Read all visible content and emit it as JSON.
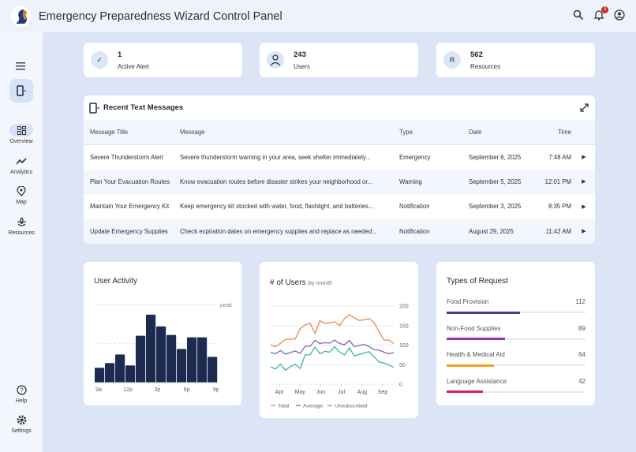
{
  "header": {
    "title": "Emergency Preparedness Wizard Control Panel",
    "notification_count": "3",
    "icons": [
      "search-icon",
      "bell-icon",
      "account-icon"
    ]
  },
  "sidebar": {
    "items": [
      {
        "label": "Overview",
        "icon": "grid-icon",
        "active": true
      },
      {
        "label": "Analytics",
        "icon": "trend-icon"
      },
      {
        "label": "Map",
        "icon": "map-pin-icon"
      },
      {
        "label": "Resources",
        "icon": "plant-icon"
      }
    ],
    "bottom": [
      {
        "label": "Help",
        "icon": "help-icon"
      },
      {
        "label": "Settings",
        "icon": "gear-icon"
      }
    ]
  },
  "stats": [
    {
      "value": "1",
      "label": "Active Alert",
      "icon": "check-icon"
    },
    {
      "value": "243",
      "label": "Users",
      "icon": "user-icon"
    },
    {
      "value": "562",
      "label": "Resources",
      "icon_letter": "R"
    }
  ],
  "messages": {
    "title": "Recent Text Messages",
    "columns": [
      "Message Title",
      "Message",
      "Type",
      "Date",
      "Time"
    ],
    "rows": [
      [
        "Severe Thunderstorm Alert",
        "Severe thunderstorm warning in your area, seek shelter immediately...",
        "Emergency",
        "September 6, 2025",
        "7:48 AM"
      ],
      [
        "Plan Your Evacuation Routes",
        "Know evacuation routes before disaster strikes your neighborhood or...",
        "Warning",
        "September 5, 2025",
        "12:01 PM"
      ],
      [
        "Maintain Your Emergency Kit",
        "Keep emergency kit stocked with water, food, flashlight, and batteries...",
        "Notification",
        "September 3, 2025",
        "8:35 PM"
      ],
      [
        "Update Emergency Supplies",
        "Check expiration dates on emergency supplies and replace as needed...",
        "Notification",
        "August 29, 2025",
        "11:42 AM"
      ]
    ]
  },
  "chart_data": [
    {
      "type": "bar",
      "title": "User Activity",
      "reference_line": "peak",
      "x_ticks": [
        "9a",
        "12p",
        "3p",
        "6p",
        "9p"
      ],
      "values_percent_of_peak": [
        19,
        25,
        36,
        22,
        60,
        87,
        72,
        61,
        43,
        58,
        58,
        33
      ],
      "color": "#1b2a4e"
    },
    {
      "type": "line",
      "title": "# of Users",
      "subtitle": "by month",
      "ylim": [
        0,
        200
      ],
      "y_ticks": [
        0,
        50,
        100,
        150,
        200
      ],
      "x_ticks": [
        "Apr",
        "May",
        "Jun",
        "Jul",
        "Aug",
        "Sep"
      ],
      "grid": true,
      "legend": "bottom",
      "series": [
        {
          "name": "Total",
          "color": "#e8884a",
          "values": [
            100,
            96,
            105,
            115,
            115,
            116,
            142,
            152,
            156,
            130,
            162,
            156,
            157,
            160,
            150,
            168,
            178,
            170,
            163,
            165,
            168,
            158,
            135,
            113,
            113,
            104
          ]
        },
        {
          "name": "Average",
          "color": "#7b68b0",
          "values": [
            81,
            78,
            86,
            77,
            81,
            85,
            79,
            97,
            97,
            112,
            104,
            106,
            105,
            113,
            104,
            101,
            112,
            96,
            99,
            102,
            96,
            88,
            87,
            82,
            78,
            81
          ]
        },
        {
          "name": "Unsubscribed",
          "color": "#3fb59a",
          "values": [
            44,
            39,
            51,
            36,
            45,
            51,
            40,
            75,
            75,
            95,
            78,
            84,
            82,
            96,
            82,
            75,
            93,
            72,
            76,
            80,
            83,
            70,
            57,
            54,
            49,
            43
          ]
        }
      ]
    }
  ],
  "requests": {
    "title": "Types of Request",
    "items": [
      {
        "label": "Food Provision",
        "value": "112",
        "fraction": 0.53,
        "color": "#4b3a99"
      },
      {
        "label": "Non-Food Supplies",
        "value": "89",
        "fraction": 0.42,
        "color": "#9c2fb0"
      },
      {
        "label": "Health & Medical Aid",
        "value": "64",
        "fraction": 0.34,
        "color": "#f5a020"
      },
      {
        "label": "Language Assistance",
        "value": "42",
        "fraction": 0.26,
        "color": "#d3225e"
      }
    ]
  }
}
